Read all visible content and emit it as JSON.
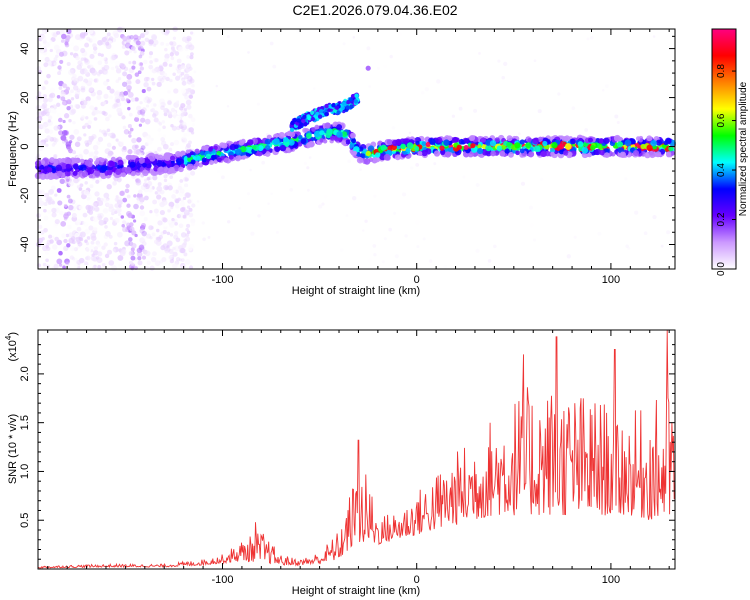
{
  "title": "C2E1.2026.079.04.36.E02",
  "chart_data": [
    {
      "type": "heatmap",
      "xlabel": "Height of straight line (km)",
      "ylabel": "Frequency (Hz)",
      "xlim": [
        -195,
        133
      ],
      "ylim": [
        -50,
        48
      ],
      "xticks": [
        -100,
        0,
        100
      ],
      "yticks": [
        40,
        20,
        0,
        -20,
        -40
      ],
      "xtick_labels": [
        "-100",
        "0",
        "100"
      ],
      "ytick_labels": [
        "40",
        "20",
        "0",
        "-20",
        "-40"
      ],
      "ridge": {
        "x": [
          -195,
          -170,
          -150,
          -130,
          -120,
          -110,
          -95,
          -80,
          -65,
          -50,
          -40,
          -35,
          -30,
          -25,
          -20,
          -10,
          0,
          20,
          50,
          80,
          110,
          133
        ],
        "freq": [
          -9,
          -9,
          -8,
          -7,
          -6,
          -4,
          -2,
          0,
          2,
          5,
          6,
          4,
          -2,
          -3,
          -2,
          -1,
          0,
          0,
          0,
          0,
          0,
          0
        ]
      },
      "branch": {
        "x": [
          -65,
          -55,
          -45,
          -38,
          -32,
          -30
        ],
        "freq": [
          8,
          12,
          15,
          16,
          19,
          20
        ]
      },
      "isolated_point": {
        "x": -25,
        "freq": 32
      },
      "colorbar": {
        "label": "Normalized spectral amplitude",
        "range": [
          0,
          0.97
        ],
        "ticks": [
          0.0,
          0.2,
          0.4,
          0.6,
          0.8
        ],
        "tick_labels": [
          "0.0",
          "0.2",
          "0.4",
          "0.6",
          "0.8"
        ],
        "colors": [
          "#ffffff",
          "#cc99ff",
          "#6600ff",
          "#0000ff",
          "#00ffff",
          "#00ff00",
          "#ffff00",
          "#ff8000",
          "#ff0000",
          "#ff0080"
        ]
      }
    },
    {
      "type": "line",
      "xlabel": "Height of straight line (km)",
      "ylabel": "SNR (10 * v/v)",
      "scale_label": "(x10",
      "scale_exponent": "4",
      "scale_close": ")",
      "xlim": [
        -195,
        133
      ],
      "ylim": [
        0,
        2.45
      ],
      "xticks": [
        -100,
        0,
        100
      ],
      "yticks": [
        0.5,
        1.0,
        1.5,
        2.0
      ],
      "xtick_labels": [
        "-100",
        "0",
        "100"
      ],
      "ytick_labels": [
        "0.5",
        "1.0",
        "1.5",
        "2.0"
      ],
      "line_color": "#ee3333",
      "envelope": {
        "x": [
          -195,
          -160,
          -130,
          -110,
          -100,
          -90,
          -80,
          -70,
          -60,
          -50,
          -40,
          -32,
          -25,
          -20,
          -10,
          0,
          10,
          20,
          30,
          40,
          50,
          60,
          70,
          80,
          90,
          100,
          110,
          120,
          133
        ],
        "base": [
          0.01,
          0.02,
          0.02,
          0.04,
          0.06,
          0.08,
          0.07,
          0.04,
          0.04,
          0.05,
          0.1,
          0.25,
          0.25,
          0.25,
          0.3,
          0.35,
          0.4,
          0.45,
          0.5,
          0.55,
          0.55,
          0.55,
          0.55,
          0.55,
          0.55,
          0.55,
          0.55,
          0.5,
          0.5
        ],
        "peak": [
          0.03,
          0.05,
          0.05,
          0.1,
          0.15,
          0.3,
          0.4,
          0.15,
          0.1,
          0.18,
          0.4,
          0.95,
          1.0,
          0.55,
          0.6,
          0.8,
          1.0,
          1.2,
          1.4,
          1.6,
          1.8,
          1.9,
          1.9,
          1.85,
          1.8,
          1.7,
          1.6,
          1.7,
          1.9
        ]
      },
      "spikes": [
        {
          "x": 72,
          "y": 2.38
        },
        {
          "x": 129,
          "y": 2.45
        },
        {
          "x": 55,
          "y": 2.2
        },
        {
          "x": 102,
          "y": 2.25
        },
        {
          "x": -30,
          "y": 1.32
        },
        {
          "x": -83,
          "y": 0.48
        }
      ]
    }
  ]
}
